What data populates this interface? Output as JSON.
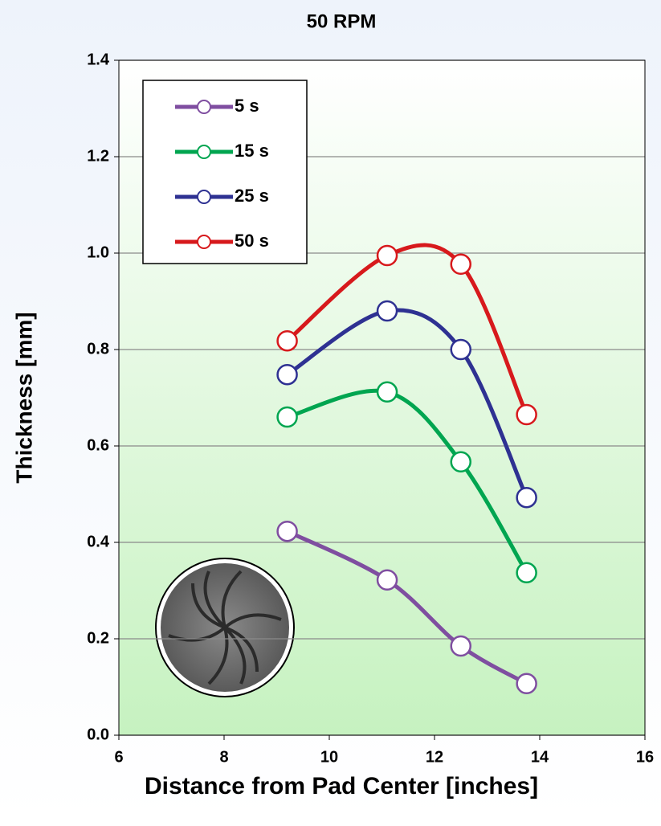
{
  "chart_data": {
    "type": "line",
    "title": "50 RPM",
    "x_label": "Distance from Pad Center [inches]",
    "y_label": "Thickness [mm]",
    "x": [
      9.2,
      11.1,
      12.5,
      13.75
    ],
    "series": [
      {
        "name": "5 s",
        "color": "#7f4ea0",
        "values": [
          0.423,
          0.322,
          0.185,
          0.107
        ]
      },
      {
        "name": "15 s",
        "color": "#00a550",
        "values": [
          0.66,
          0.712,
          0.567,
          0.337
        ]
      },
      {
        "name": "25 s",
        "color": "#2e3192",
        "values": [
          0.748,
          0.88,
          0.8,
          0.493
        ]
      },
      {
        "name": "50 s",
        "color": "#d7191c",
        "values": [
          0.818,
          0.995,
          0.977,
          0.665
        ]
      }
    ],
    "xlim": [
      6,
      16
    ],
    "xticks": [
      6,
      8,
      10,
      12,
      14,
      16
    ],
    "ylim": [
      0,
      1.4
    ],
    "yticks": [
      {
        "value": 0,
        "label": "0.0"
      },
      0.2,
      0.4,
      0.6,
      0.8,
      {
        "value": 1,
        "label": "1.0"
      },
      1.2,
      1.4
    ],
    "grid": true,
    "legend": "upper left"
  }
}
